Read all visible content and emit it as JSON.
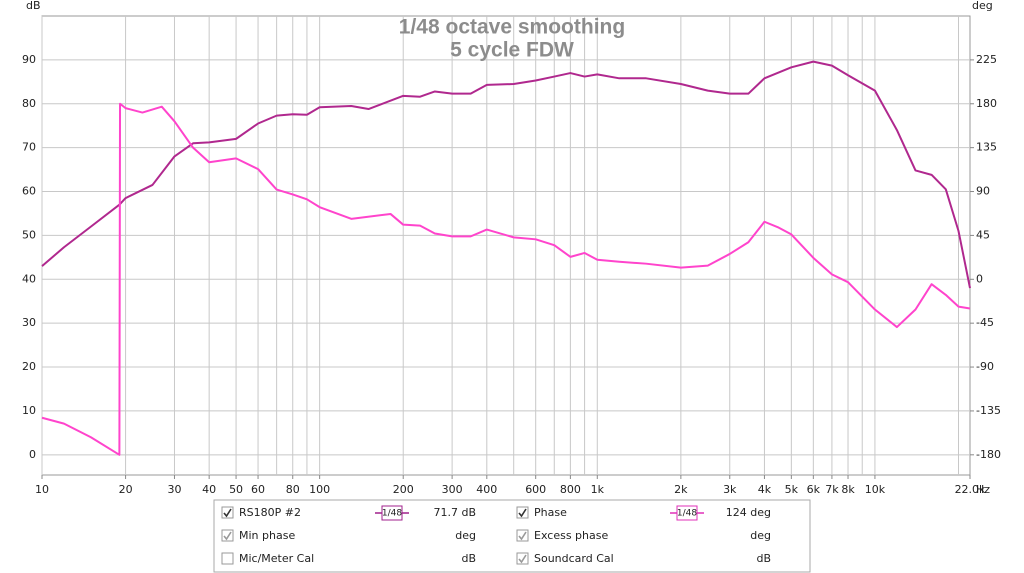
{
  "chart_data": {
    "type": "line",
    "title": "1/48 octave smoothing",
    "subtitle": "5 cycle FDW",
    "ylabel": "dB",
    "y2label": "deg",
    "xlabel": "Hz",
    "xscale": "log",
    "xlim": [
      10,
      22000
    ],
    "ylim": [
      -4.6,
      100
    ],
    "y2lim": [
      -200.7,
      270
    ],
    "xticks": [
      10,
      20,
      30,
      40,
      50,
      60,
      80,
      100,
      200,
      300,
      400,
      600,
      800,
      {
        "value": 1000,
        "label": "1k"
      },
      {
        "value": 2000,
        "label": "2k"
      },
      {
        "value": 3000,
        "label": "3k"
      },
      {
        "value": 4000,
        "label": "4k"
      },
      {
        "value": 5000,
        "label": "5k"
      },
      {
        "value": 6000,
        "label": "6k"
      },
      {
        "value": 7000,
        "label": "7k"
      },
      {
        "value": 8000,
        "label": "8k"
      },
      {
        "value": 10000,
        "label": "10k"
      },
      {
        "value": 22000,
        "label": "22.0k"
      }
    ],
    "xgrid": [
      10,
      20,
      30,
      40,
      50,
      60,
      70,
      80,
      90,
      100,
      200,
      300,
      400,
      500,
      600,
      700,
      800,
      900,
      1000,
      2000,
      3000,
      4000,
      5000,
      6000,
      7000,
      8000,
      9000,
      10000,
      20000
    ],
    "yticks": [
      0,
      10,
      20,
      30,
      40,
      50,
      60,
      70,
      80,
      90
    ],
    "y2ticks": [
      -180,
      -135,
      -90,
      -45,
      0,
      45,
      90,
      135,
      180,
      225
    ],
    "grid": true,
    "series": [
      {
        "name": "RS180P #2",
        "color": "#b0288e",
        "x": [
          10,
          12,
          15,
          19,
          20,
          25,
          30,
          35,
          40,
          50,
          60,
          70,
          80,
          90,
          100,
          130,
          150,
          200,
          230,
          260,
          300,
          350,
          400,
          500,
          600,
          700,
          800,
          900,
          1000,
          1200,
          1500,
          2000,
          2500,
          3000,
          3500,
          4000,
          5000,
          6000,
          7000,
          8000,
          10000,
          12000,
          14000,
          16000,
          18000,
          20000,
          22000
        ],
        "values": [
          43,
          47.3,
          52,
          57,
          58.5,
          61.5,
          68,
          71,
          71.2,
          72,
          75.5,
          77.3,
          77.6,
          77.5,
          79.2,
          79.5,
          78.8,
          81.8,
          81.6,
          82.8,
          82.3,
          82.3,
          84.3,
          84.5,
          85.3,
          86.2,
          87,
          86.2,
          86.7,
          85.8,
          85.8,
          84.5,
          83,
          82.3,
          82.3,
          85.8,
          88.3,
          89.6,
          88.7,
          86.5,
          83,
          74,
          64.8,
          63.8,
          60.5,
          51,
          38
        ]
      },
      {
        "name": "Phase",
        "color": "#ff44cc",
        "axis": "y2",
        "x": [
          10,
          12,
          15,
          19,
          19.1,
          20,
          23,
          27,
          30,
          35,
          40,
          50,
          60,
          70,
          80,
          90,
          100,
          130,
          180,
          200,
          230,
          260,
          300,
          350,
          400,
          500,
          600,
          700,
          800,
          900,
          1000,
          1200,
          1500,
          2000,
          2500,
          3000,
          3500,
          4000,
          4500,
          5000,
          6000,
          7000,
          8000,
          10000,
          12000,
          14000,
          16000,
          18000,
          20000,
          22000
        ],
        "values": [
          -142,
          -148,
          -162,
          -180,
          180,
          175.5,
          171,
          177,
          162,
          135,
          120,
          124,
          113,
          92,
          87,
          82,
          74,
          62,
          67,
          56,
          55,
          47,
          44,
          44,
          51,
          43,
          41,
          35,
          23,
          27,
          20,
          18,
          16,
          12,
          14,
          26,
          38,
          59,
          53,
          46,
          22,
          5,
          -3,
          -31,
          -49,
          -31,
          -5,
          -16,
          -28,
          -30
        ]
      }
    ]
  },
  "legend_panel": {
    "entries": [
      {
        "name": "RS180P #2",
        "checked": true,
        "smoothing": "1/48",
        "value": "71.7 dB",
        "color": "#a0208c"
      },
      {
        "name": "Phase",
        "checked": true,
        "smoothing": "1/48",
        "value": "124 deg",
        "color": "#e030b8"
      },
      {
        "name": "Min phase",
        "checked": true,
        "value": "deg"
      },
      {
        "name": "Excess phase",
        "checked": true,
        "value": "deg"
      },
      {
        "name": "Mic/Meter Cal",
        "checked": false,
        "value": "dB"
      },
      {
        "name": "Soundcard Cal",
        "checked": true,
        "value": "dB"
      }
    ]
  }
}
